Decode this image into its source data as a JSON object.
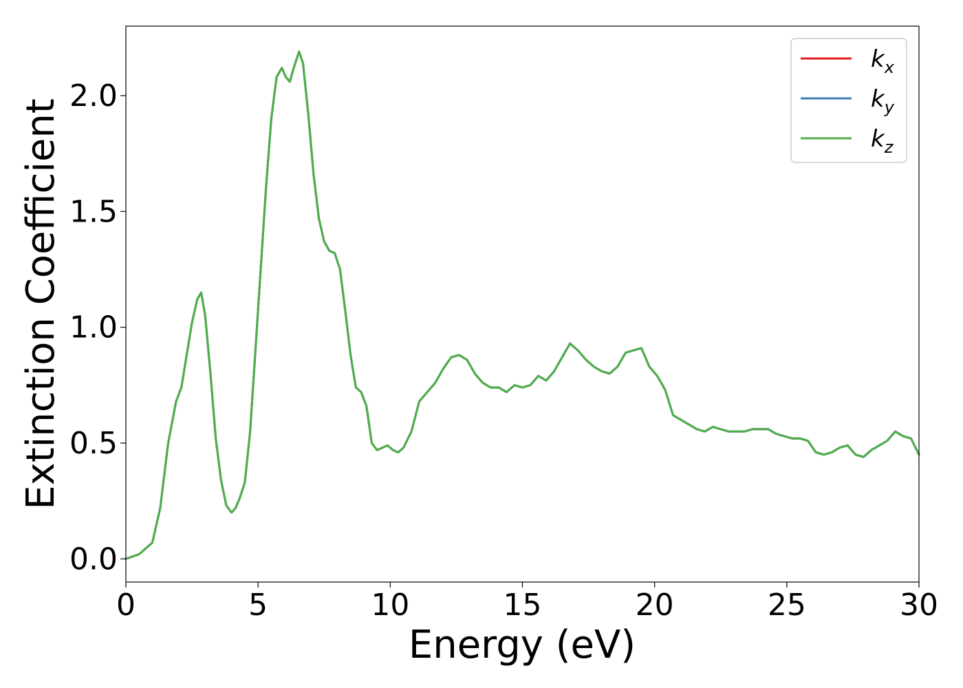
{
  "chart_data": {
    "type": "line",
    "title": "",
    "xlabel": "Energy (eV)",
    "ylabel": "Extinction Coefficient",
    "xlim": [
      0,
      30
    ],
    "ylim": [
      -0.1,
      2.3
    ],
    "xticks": [
      0,
      5,
      10,
      15,
      20,
      25,
      30
    ],
    "xtick_labels": [
      "0",
      "5",
      "10",
      "15",
      "20",
      "25",
      "30"
    ],
    "yticks": [
      0.0,
      0.5,
      1.0,
      1.5,
      2.0
    ],
    "ytick_labels": [
      "0.0",
      "0.5",
      "1.0",
      "1.5",
      "2.0"
    ],
    "grid": false,
    "legend_position": "top-right",
    "series": [
      {
        "name": "k_x",
        "base": "k",
        "sub": "x",
        "color": "#e41a1c",
        "x": [
          0,
          0.5,
          1,
          1.3,
          1.6,
          1.9,
          2.1,
          2.3,
          2.5,
          2.7,
          2.85,
          3.0,
          3.2,
          3.4,
          3.6,
          3.8,
          4.0,
          4.15,
          4.3,
          4.5,
          4.7,
          4.9,
          5.1,
          5.3,
          5.5,
          5.7,
          5.9,
          6.05,
          6.2,
          6.35,
          6.55,
          6.7,
          6.9,
          7.1,
          7.3,
          7.5,
          7.7,
          7.9,
          8.1,
          8.3,
          8.5,
          8.7,
          8.9,
          9.1,
          9.3,
          9.5,
          9.7,
          9.9,
          10.1,
          10.3,
          10.5,
          10.8,
          11.1,
          11.4,
          11.7,
          12.0,
          12.3,
          12.6,
          12.9,
          13.2,
          13.5,
          13.8,
          14.1,
          14.4,
          14.7,
          15.0,
          15.3,
          15.6,
          15.9,
          16.2,
          16.5,
          16.8,
          17.1,
          17.4,
          17.7,
          18.0,
          18.3,
          18.6,
          18.9,
          19.2,
          19.5,
          19.8,
          20.1,
          20.4,
          20.7,
          21.0,
          21.3,
          21.6,
          21.9,
          22.2,
          22.5,
          22.8,
          23.1,
          23.4,
          23.7,
          24.0,
          24.3,
          24.6,
          24.9,
          25.2,
          25.5,
          25.8,
          26.1,
          26.4,
          26.7,
          27.0,
          27.3,
          27.6,
          27.9,
          28.2,
          28.5,
          28.8,
          29.1,
          29.4,
          29.7,
          30.0
        ],
        "y": [
          0.0,
          0.02,
          0.07,
          0.22,
          0.5,
          0.68,
          0.74,
          0.88,
          1.02,
          1.12,
          1.15,
          1.05,
          0.8,
          0.52,
          0.34,
          0.23,
          0.2,
          0.22,
          0.26,
          0.33,
          0.55,
          0.9,
          1.25,
          1.6,
          1.9,
          2.08,
          2.12,
          2.08,
          2.06,
          2.12,
          2.19,
          2.14,
          1.92,
          1.66,
          1.47,
          1.37,
          1.33,
          1.32,
          1.25,
          1.07,
          0.88,
          0.74,
          0.72,
          0.66,
          0.5,
          0.47,
          0.48,
          0.49,
          0.47,
          0.46,
          0.48,
          0.55,
          0.68,
          0.72,
          0.76,
          0.82,
          0.87,
          0.88,
          0.86,
          0.8,
          0.76,
          0.74,
          0.74,
          0.72,
          0.75,
          0.74,
          0.75,
          0.79,
          0.77,
          0.81,
          0.87,
          0.93,
          0.9,
          0.86,
          0.83,
          0.81,
          0.8,
          0.83,
          0.89,
          0.9,
          0.91,
          0.83,
          0.79,
          0.73,
          0.62,
          0.6,
          0.58,
          0.56,
          0.55,
          0.57,
          0.56,
          0.55,
          0.55,
          0.55,
          0.56,
          0.56,
          0.56,
          0.54,
          0.53,
          0.52,
          0.52,
          0.51,
          0.46,
          0.45,
          0.46,
          0.48,
          0.49,
          0.45,
          0.44,
          0.47,
          0.49,
          0.51,
          0.55,
          0.53,
          0.52,
          0.45
        ]
      },
      {
        "name": "k_y",
        "base": "k",
        "sub": "y",
        "color": "#377eb8",
        "x": [
          0,
          0.5,
          1,
          1.3,
          1.6,
          1.9,
          2.1,
          2.3,
          2.5,
          2.7,
          2.85,
          3.0,
          3.2,
          3.4,
          3.6,
          3.8,
          4.0,
          4.15,
          4.3,
          4.5,
          4.7,
          4.9,
          5.1,
          5.3,
          5.5,
          5.7,
          5.9,
          6.05,
          6.2,
          6.35,
          6.55,
          6.7,
          6.9,
          7.1,
          7.3,
          7.5,
          7.7,
          7.9,
          8.1,
          8.3,
          8.5,
          8.7,
          8.9,
          9.1,
          9.3,
          9.5,
          9.7,
          9.9,
          10.1,
          10.3,
          10.5,
          10.8,
          11.1,
          11.4,
          11.7,
          12.0,
          12.3,
          12.6,
          12.9,
          13.2,
          13.5,
          13.8,
          14.1,
          14.4,
          14.7,
          15.0,
          15.3,
          15.6,
          15.9,
          16.2,
          16.5,
          16.8,
          17.1,
          17.4,
          17.7,
          18.0,
          18.3,
          18.6,
          18.9,
          19.2,
          19.5,
          19.8,
          20.1,
          20.4,
          20.7,
          21.0,
          21.3,
          21.6,
          21.9,
          22.2,
          22.5,
          22.8,
          23.1,
          23.4,
          23.7,
          24.0,
          24.3,
          24.6,
          24.9,
          25.2,
          25.5,
          25.8,
          26.1,
          26.4,
          26.7,
          27.0,
          27.3,
          27.6,
          27.9,
          28.2,
          28.5,
          28.8,
          29.1,
          29.4,
          29.7,
          30.0
        ],
        "y": [
          0.0,
          0.02,
          0.07,
          0.22,
          0.5,
          0.68,
          0.74,
          0.88,
          1.02,
          1.12,
          1.15,
          1.05,
          0.8,
          0.52,
          0.34,
          0.23,
          0.2,
          0.22,
          0.26,
          0.33,
          0.55,
          0.9,
          1.25,
          1.6,
          1.9,
          2.08,
          2.12,
          2.08,
          2.06,
          2.12,
          2.19,
          2.14,
          1.92,
          1.66,
          1.47,
          1.37,
          1.33,
          1.32,
          1.25,
          1.07,
          0.88,
          0.74,
          0.72,
          0.66,
          0.5,
          0.47,
          0.48,
          0.49,
          0.47,
          0.46,
          0.48,
          0.55,
          0.68,
          0.72,
          0.76,
          0.82,
          0.87,
          0.88,
          0.86,
          0.8,
          0.76,
          0.74,
          0.74,
          0.72,
          0.75,
          0.74,
          0.75,
          0.79,
          0.77,
          0.81,
          0.87,
          0.93,
          0.9,
          0.86,
          0.83,
          0.81,
          0.8,
          0.83,
          0.89,
          0.9,
          0.91,
          0.83,
          0.79,
          0.73,
          0.62,
          0.6,
          0.58,
          0.56,
          0.55,
          0.57,
          0.56,
          0.55,
          0.55,
          0.55,
          0.56,
          0.56,
          0.56,
          0.54,
          0.53,
          0.52,
          0.52,
          0.51,
          0.46,
          0.45,
          0.46,
          0.48,
          0.49,
          0.45,
          0.44,
          0.47,
          0.49,
          0.51,
          0.55,
          0.53,
          0.52,
          0.45
        ]
      },
      {
        "name": "k_z",
        "base": "k",
        "sub": "z",
        "color": "#4daf4a",
        "x": [
          0,
          0.5,
          1,
          1.3,
          1.6,
          1.9,
          2.1,
          2.3,
          2.5,
          2.7,
          2.85,
          3.0,
          3.2,
          3.4,
          3.6,
          3.8,
          4.0,
          4.15,
          4.3,
          4.5,
          4.7,
          4.9,
          5.1,
          5.3,
          5.5,
          5.7,
          5.9,
          6.05,
          6.2,
          6.35,
          6.55,
          6.7,
          6.9,
          7.1,
          7.3,
          7.5,
          7.7,
          7.9,
          8.1,
          8.3,
          8.5,
          8.7,
          8.9,
          9.1,
          9.3,
          9.5,
          9.7,
          9.9,
          10.1,
          10.3,
          10.5,
          10.8,
          11.1,
          11.4,
          11.7,
          12.0,
          12.3,
          12.6,
          12.9,
          13.2,
          13.5,
          13.8,
          14.1,
          14.4,
          14.7,
          15.0,
          15.3,
          15.6,
          15.9,
          16.2,
          16.5,
          16.8,
          17.1,
          17.4,
          17.7,
          18.0,
          18.3,
          18.6,
          18.9,
          19.2,
          19.5,
          19.8,
          20.1,
          20.4,
          20.7,
          21.0,
          21.3,
          21.6,
          21.9,
          22.2,
          22.5,
          22.8,
          23.1,
          23.4,
          23.7,
          24.0,
          24.3,
          24.6,
          24.9,
          25.2,
          25.5,
          25.8,
          26.1,
          26.4,
          26.7,
          27.0,
          27.3,
          27.6,
          27.9,
          28.2,
          28.5,
          28.8,
          29.1,
          29.4,
          29.7,
          30.0
        ],
        "y": [
          0.0,
          0.02,
          0.07,
          0.22,
          0.5,
          0.68,
          0.74,
          0.88,
          1.02,
          1.12,
          1.15,
          1.05,
          0.8,
          0.52,
          0.34,
          0.23,
          0.2,
          0.22,
          0.26,
          0.33,
          0.55,
          0.9,
          1.25,
          1.6,
          1.9,
          2.08,
          2.12,
          2.08,
          2.06,
          2.12,
          2.19,
          2.14,
          1.92,
          1.66,
          1.47,
          1.37,
          1.33,
          1.32,
          1.25,
          1.07,
          0.88,
          0.74,
          0.72,
          0.66,
          0.5,
          0.47,
          0.48,
          0.49,
          0.47,
          0.46,
          0.48,
          0.55,
          0.68,
          0.72,
          0.76,
          0.82,
          0.87,
          0.88,
          0.86,
          0.8,
          0.76,
          0.74,
          0.74,
          0.72,
          0.75,
          0.74,
          0.75,
          0.79,
          0.77,
          0.81,
          0.87,
          0.93,
          0.9,
          0.86,
          0.83,
          0.81,
          0.8,
          0.83,
          0.89,
          0.9,
          0.91,
          0.83,
          0.79,
          0.73,
          0.62,
          0.6,
          0.58,
          0.56,
          0.55,
          0.57,
          0.56,
          0.55,
          0.55,
          0.55,
          0.56,
          0.56,
          0.56,
          0.54,
          0.53,
          0.52,
          0.52,
          0.51,
          0.46,
          0.45,
          0.46,
          0.48,
          0.49,
          0.45,
          0.44,
          0.47,
          0.49,
          0.51,
          0.55,
          0.53,
          0.52,
          0.45
        ]
      }
    ]
  }
}
